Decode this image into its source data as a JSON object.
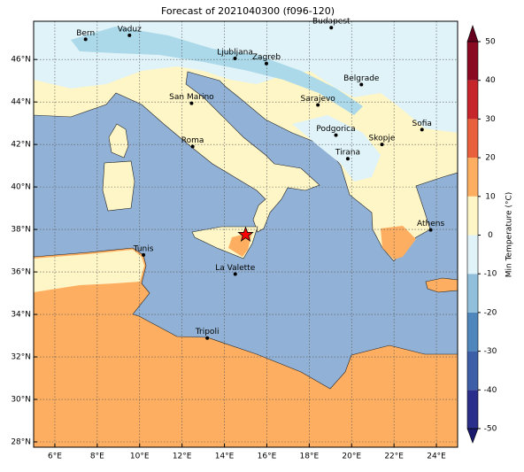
{
  "title": "Forecast of 2021040300 (f096-120)",
  "map": {
    "xlim": [
      5,
      25
    ],
    "ylim": [
      27.75,
      47.8
    ],
    "xticks": [
      {
        "value": 6,
        "label": "6°E"
      },
      {
        "value": 8,
        "label": "8°E"
      },
      {
        "value": 10,
        "label": "10°E"
      },
      {
        "value": 12,
        "label": "12°E"
      },
      {
        "value": 14,
        "label": "14°E"
      },
      {
        "value": 16,
        "label": "16°E"
      },
      {
        "value": 18,
        "label": "18°E"
      },
      {
        "value": 20,
        "label": "20°E"
      },
      {
        "value": 22,
        "label": "22°E"
      },
      {
        "value": 24,
        "label": "24°E"
      }
    ],
    "yticks": [
      {
        "value": 28,
        "label": "28°N"
      },
      {
        "value": 30,
        "label": "30°N"
      },
      {
        "value": 32,
        "label": "32°N"
      },
      {
        "value": 34,
        "label": "34°N"
      },
      {
        "value": 36,
        "label": "36°N"
      },
      {
        "value": 38,
        "label": "38°N"
      },
      {
        "value": 40,
        "label": "40°N"
      },
      {
        "value": 42,
        "label": "42°N"
      },
      {
        "value": 44,
        "label": "44°N"
      },
      {
        "value": 46,
        "label": "46°N"
      }
    ],
    "grid": true,
    "cities": [
      {
        "name": "Bern",
        "lon": 7.45,
        "lat": 46.95
      },
      {
        "name": "Vaduz",
        "lon": 9.52,
        "lat": 47.14
      },
      {
        "name": "Budapest",
        "lon": 19.04,
        "lat": 47.5
      },
      {
        "name": "Ljubljana",
        "lon": 14.5,
        "lat": 46.05
      },
      {
        "name": "Zagreb",
        "lon": 15.98,
        "lat": 45.81
      },
      {
        "name": "Belgrade",
        "lon": 20.46,
        "lat": 44.82
      },
      {
        "name": "San Marino",
        "lon": 12.45,
        "lat": 43.94
      },
      {
        "name": "Sarajevo",
        "lon": 18.41,
        "lat": 43.86
      },
      {
        "name": "Sofia",
        "lon": 23.32,
        "lat": 42.7
      },
      {
        "name": "Podgorica",
        "lon": 19.26,
        "lat": 42.44
      },
      {
        "name": "Skopje",
        "lon": 21.43,
        "lat": 42.0
      },
      {
        "name": "Roma",
        "lon": 12.5,
        "lat": 41.9
      },
      {
        "name": "Tirana",
        "lon": 19.82,
        "lat": 41.33
      },
      {
        "name": "Athens",
        "lon": 23.73,
        "lat": 37.98
      },
      {
        "name": "Tunis",
        "lon": 10.18,
        "lat": 36.8
      },
      {
        "name": "La Valette",
        "lon": 14.51,
        "lat": 35.9
      },
      {
        "name": "Tripoli",
        "lon": 13.19,
        "lat": 32.89
      }
    ],
    "marker": {
      "lon": 15.0,
      "lat": 37.75,
      "color": "#ff0000"
    }
  },
  "colorbar": {
    "label": "Min Temperature (°C)",
    "lim": [
      -50,
      50
    ],
    "ticks": [
      -50,
      -40,
      -30,
      -20,
      -10,
      0,
      10,
      20,
      30,
      40,
      50
    ],
    "colors": [
      "#2b2f8c",
      "#3d5fa8",
      "#4f87bd",
      "#91bfdb",
      "#e0f3f8",
      "#fef6c6",
      "#fdae61",
      "#e8603c",
      "#c6262b",
      "#8a0a24"
    ],
    "under": "#1a1a6e",
    "over": "#67001f"
  }
}
